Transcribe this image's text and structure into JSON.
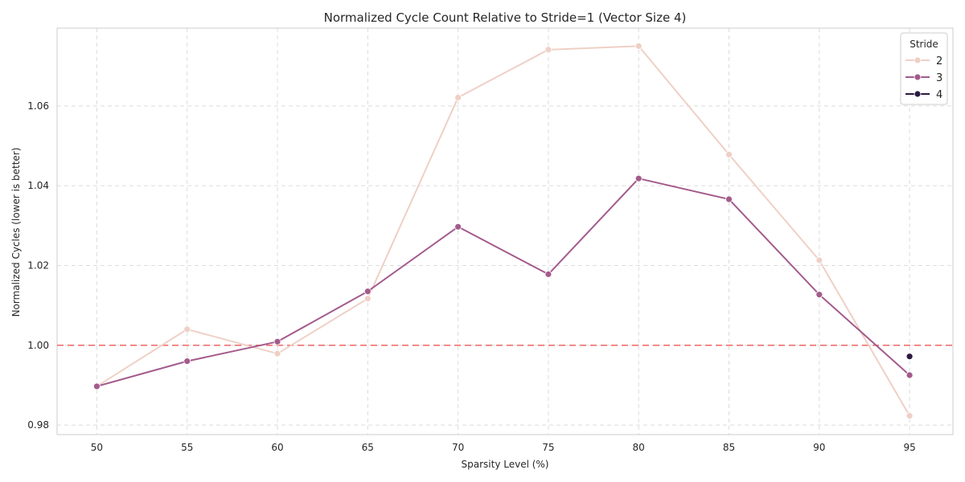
{
  "chart_data": {
    "type": "line",
    "title": "Normalized Cycle Count Relative to Stride=1 (Vector Size 4)",
    "xlabel": "Sparsity Level (%)",
    "ylabel": "Normalized Cycles (lower is better)",
    "x_ticks": [
      "50",
      "55",
      "60",
      "65",
      "70",
      "75",
      "80",
      "85",
      "90",
      "95"
    ],
    "y_ticks": [
      "0.98",
      "1.00",
      "1.02",
      "1.04",
      "1.06"
    ],
    "xlim": [
      47.8,
      97.4
    ],
    "ylim": [
      0.9776,
      1.0795
    ],
    "grid": true,
    "reference_line": {
      "y": 1.0,
      "style": "dashed",
      "color": "#f07070"
    },
    "legend": {
      "title": "Stride",
      "placement": "top-right"
    },
    "series": [
      {
        "name": "2",
        "color": "#efd0c6",
        "x": [
          50,
          55,
          60,
          65,
          70,
          75,
          80,
          85,
          90,
          95
        ],
        "y": [
          0.9897,
          1.004,
          0.9979,
          1.0117,
          1.0621,
          1.0741,
          1.075,
          1.0478,
          1.0213,
          0.9823
        ]
      },
      {
        "name": "3",
        "color": "#a35b8c",
        "x": [
          50,
          55,
          60,
          65,
          70,
          75,
          80,
          85,
          90,
          95
        ],
        "y": [
          0.9897,
          0.996,
          1.0009,
          1.0135,
          1.0297,
          1.0178,
          1.0418,
          1.0366,
          1.0127,
          0.9925
        ]
      },
      {
        "name": "4",
        "color": "#2a1a40",
        "x": [
          95
        ],
        "y": [
          0.9972
        ]
      }
    ]
  }
}
